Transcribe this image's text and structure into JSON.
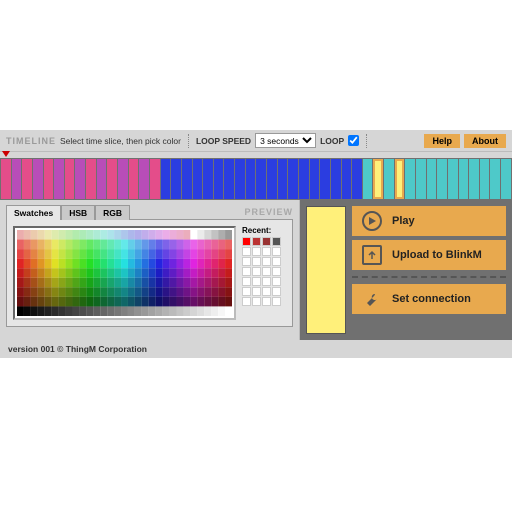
{
  "toolbar": {
    "title": "TIMELINE",
    "hint": "Select time slice, then pick color",
    "loop_speed_label": "LOOP SPEED",
    "loop_speed_value": "3 seconds",
    "loop_label": "LOOP",
    "loop_checked": true,
    "help_label": "Help",
    "about_label": "About"
  },
  "timeline": {
    "marker_position_pct": 0.5,
    "slices": [
      {
        "color": "#e44d8a"
      },
      {
        "color": "#b84db8"
      },
      {
        "color": "#e44d8a"
      },
      {
        "color": "#b84db8"
      },
      {
        "color": "#e44d8a"
      },
      {
        "color": "#b84db8"
      },
      {
        "color": "#e44d8a"
      },
      {
        "color": "#b84db8"
      },
      {
        "color": "#e44d8a"
      },
      {
        "color": "#b84db8"
      },
      {
        "color": "#e44d8a"
      },
      {
        "color": "#b84db8"
      },
      {
        "color": "#e44d8a"
      },
      {
        "color": "#b84db8"
      },
      {
        "color": "#e44d8a"
      },
      {
        "color": "#2b3de0"
      },
      {
        "color": "#2b3de0"
      },
      {
        "color": "#2b3de0"
      },
      {
        "color": "#2b3de0"
      },
      {
        "color": "#2b3de0"
      },
      {
        "color": "#2b3de0"
      },
      {
        "color": "#2b3de0"
      },
      {
        "color": "#2b3de0"
      },
      {
        "color": "#2b3de0"
      },
      {
        "color": "#2b3de0"
      },
      {
        "color": "#2b3de0"
      },
      {
        "color": "#2b3de0"
      },
      {
        "color": "#2b3de0"
      },
      {
        "color": "#2b3de0"
      },
      {
        "color": "#2b3de0"
      },
      {
        "color": "#2b3de0"
      },
      {
        "color": "#2b3de0"
      },
      {
        "color": "#2b3de0"
      },
      {
        "color": "#2b3de0"
      },
      {
        "color": "#4ec9c9"
      },
      {
        "color": "#fff07a",
        "highlight": true
      },
      {
        "color": "#4ec9c9"
      },
      {
        "color": "#fff07a",
        "highlight": true
      },
      {
        "color": "#4ec9c9"
      },
      {
        "color": "#4ec9c9"
      },
      {
        "color": "#4ec9c9"
      },
      {
        "color": "#4ec9c9"
      },
      {
        "color": "#4ec9c9"
      },
      {
        "color": "#4ec9c9"
      },
      {
        "color": "#4ec9c9"
      },
      {
        "color": "#4ec9c9"
      },
      {
        "color": "#4ec9c9"
      },
      {
        "color": "#4ec9c9"
      }
    ]
  },
  "picker": {
    "tabs": [
      {
        "label": "Swatches",
        "active": true
      },
      {
        "label": "HSB",
        "active": false
      },
      {
        "label": "RGB",
        "active": false
      }
    ],
    "preview_label": "PREVIEW",
    "recent_label": "Recent:",
    "swatch_columns": 31,
    "swatch_rows": 9
  },
  "preview": {
    "color": "#fff07a"
  },
  "actions": {
    "play": "Play",
    "upload": "Upload to BlinkM",
    "set_connection": "Set connection"
  },
  "footer": {
    "text": "version 001 © ThingM Corporation"
  },
  "style": {
    "panel_bg": "#d6d6d6",
    "dark_bg": "#707070",
    "accent": "#e8a94e"
  }
}
